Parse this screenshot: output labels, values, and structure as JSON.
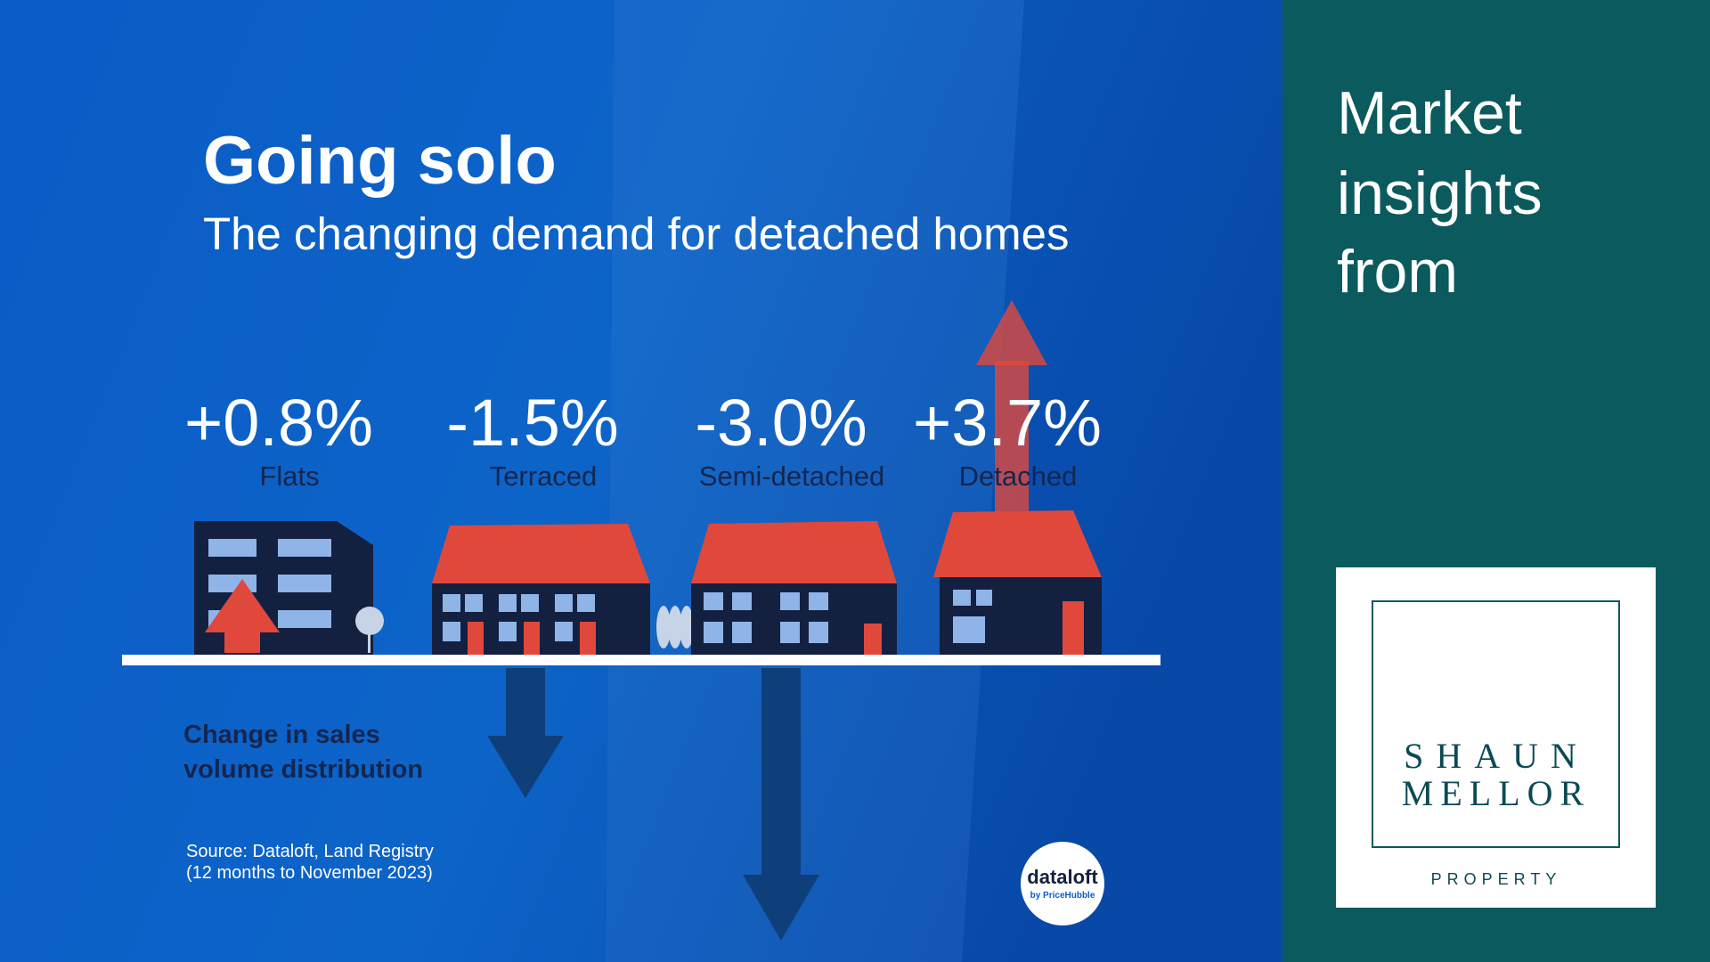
{
  "header": {
    "title": "Going solo",
    "subtitle": "The changing demand for detached homes"
  },
  "stats": [
    {
      "value": "+0.8%",
      "label": "Flats"
    },
    {
      "value": "-1.5%",
      "label": "Terraced"
    },
    {
      "value": "-3.0%",
      "label": "Semi-detached"
    },
    {
      "value": "+3.7%",
      "label": "Detached"
    }
  ],
  "caption": [
    "Change in sales",
    "volume distribution"
  ],
  "source": [
    "Source: Dataloft, Land Registry",
    "(12 months to November 2023)"
  ],
  "logo": {
    "name": "dataloft",
    "tagline": "by PriceHubble"
  },
  "sidebar": {
    "heading": [
      "Market",
      "insights",
      "from"
    ],
    "brand": [
      "SHAUN",
      "MELLOR"
    ],
    "brand_sub": "PROPERTY"
  }
}
